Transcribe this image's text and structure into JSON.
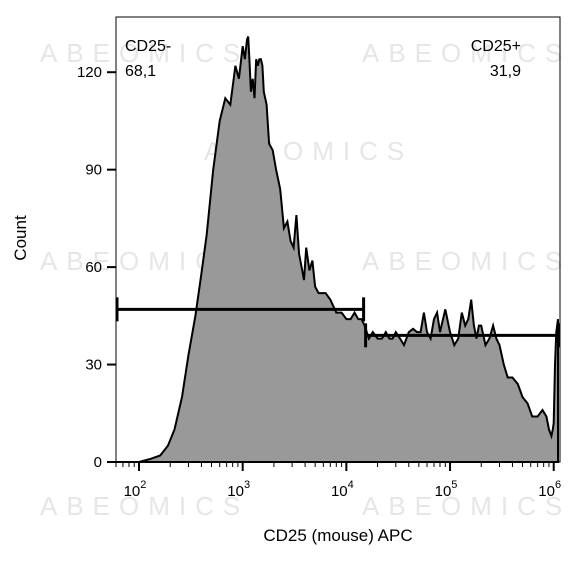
{
  "chart_data": {
    "type": "area",
    "xlabel": "CD25 (mouse) APC",
    "ylabel": "Count",
    "x_scale": "log",
    "xlim": [
      60,
      1150000
    ],
    "ylim": [
      0,
      137
    ],
    "x_ticks": [
      {
        "base": "10",
        "exp": "2",
        "value": 100
      },
      {
        "base": "10",
        "exp": "3",
        "value": 1000
      },
      {
        "base": "10",
        "exp": "4",
        "value": 10000
      },
      {
        "base": "10",
        "exp": "5",
        "value": 100000
      },
      {
        "base": "10",
        "exp": "6",
        "value": 1000000
      }
    ],
    "y_ticks": [
      0,
      30,
      60,
      90,
      120
    ],
    "fill_color": "#999999",
    "histogram": {
      "x": [
        60,
        100,
        130,
        160,
        190,
        220,
        260,
        300,
        350,
        400,
        450,
        520,
        600,
        680,
        760,
        850,
        920,
        1000,
        1050,
        1100,
        1130,
        1160,
        1200,
        1250,
        1300,
        1350,
        1400,
        1450,
        1500,
        1550,
        1600,
        1700,
        1800,
        1950,
        2100,
        2300,
        2500,
        2700,
        2900,
        3100,
        3300,
        3500,
        3700,
        3900,
        4100,
        4400,
        4700,
        5000,
        5400,
        5800,
        6300,
        7000,
        8000,
        9000,
        10000,
        11000,
        12000,
        13000,
        14000,
        15000,
        16500,
        18000,
        20000,
        22000,
        24000,
        26000,
        28000,
        30000,
        33000,
        36000,
        40000,
        44000,
        48000,
        52000,
        56000,
        60000,
        65000,
        70000,
        75000,
        80000,
        90000,
        100000,
        110000,
        120000,
        130000,
        140000,
        150000,
        160000,
        170000,
        180000,
        190000,
        200000,
        220000,
        240000,
        260000,
        280000,
        300000,
        330000,
        360000,
        400000,
        450000,
        500000,
        560000,
        620000,
        700000,
        780000,
        850000,
        900000,
        950000,
        980000,
        1000000,
        1030000,
        1060000,
        1100000
      ],
      "y": [
        0,
        0,
        1,
        2,
        5,
        10,
        20,
        33,
        45,
        58,
        70,
        90,
        105,
        112,
        110,
        122,
        118,
        128,
        124,
        130,
        131,
        124,
        114,
        118,
        112,
        124,
        122,
        124,
        124,
        122,
        114,
        110,
        98,
        96,
        90,
        84,
        72,
        74,
        68,
        66,
        76,
        64,
        60,
        56,
        66,
        59,
        62,
        54,
        52,
        52,
        52,
        50,
        46,
        46,
        44,
        44,
        46,
        44,
        44,
        42,
        38,
        40,
        38,
        38,
        40,
        38,
        38,
        40,
        38,
        36,
        40,
        41,
        40,
        40,
        46,
        40,
        38,
        44,
        46,
        40,
        47,
        40,
        36,
        38,
        46,
        42,
        44,
        50,
        42,
        38,
        42,
        42,
        36,
        38,
        42,
        38,
        36,
        30,
        26,
        26,
        24,
        20,
        18,
        14,
        14,
        16,
        14,
        10,
        8,
        10,
        12,
        30,
        40,
        44
      ]
    },
    "gates": [
      {
        "name": "CD25-",
        "percent": "68,1",
        "x_start": 60,
        "x_end": 15000,
        "y": 47
      },
      {
        "name": "CD25+",
        "percent": "31,9",
        "x_start": 15000,
        "x_end": 1150000,
        "y": 39
      }
    ]
  },
  "watermark_text": "ABEOMICS"
}
